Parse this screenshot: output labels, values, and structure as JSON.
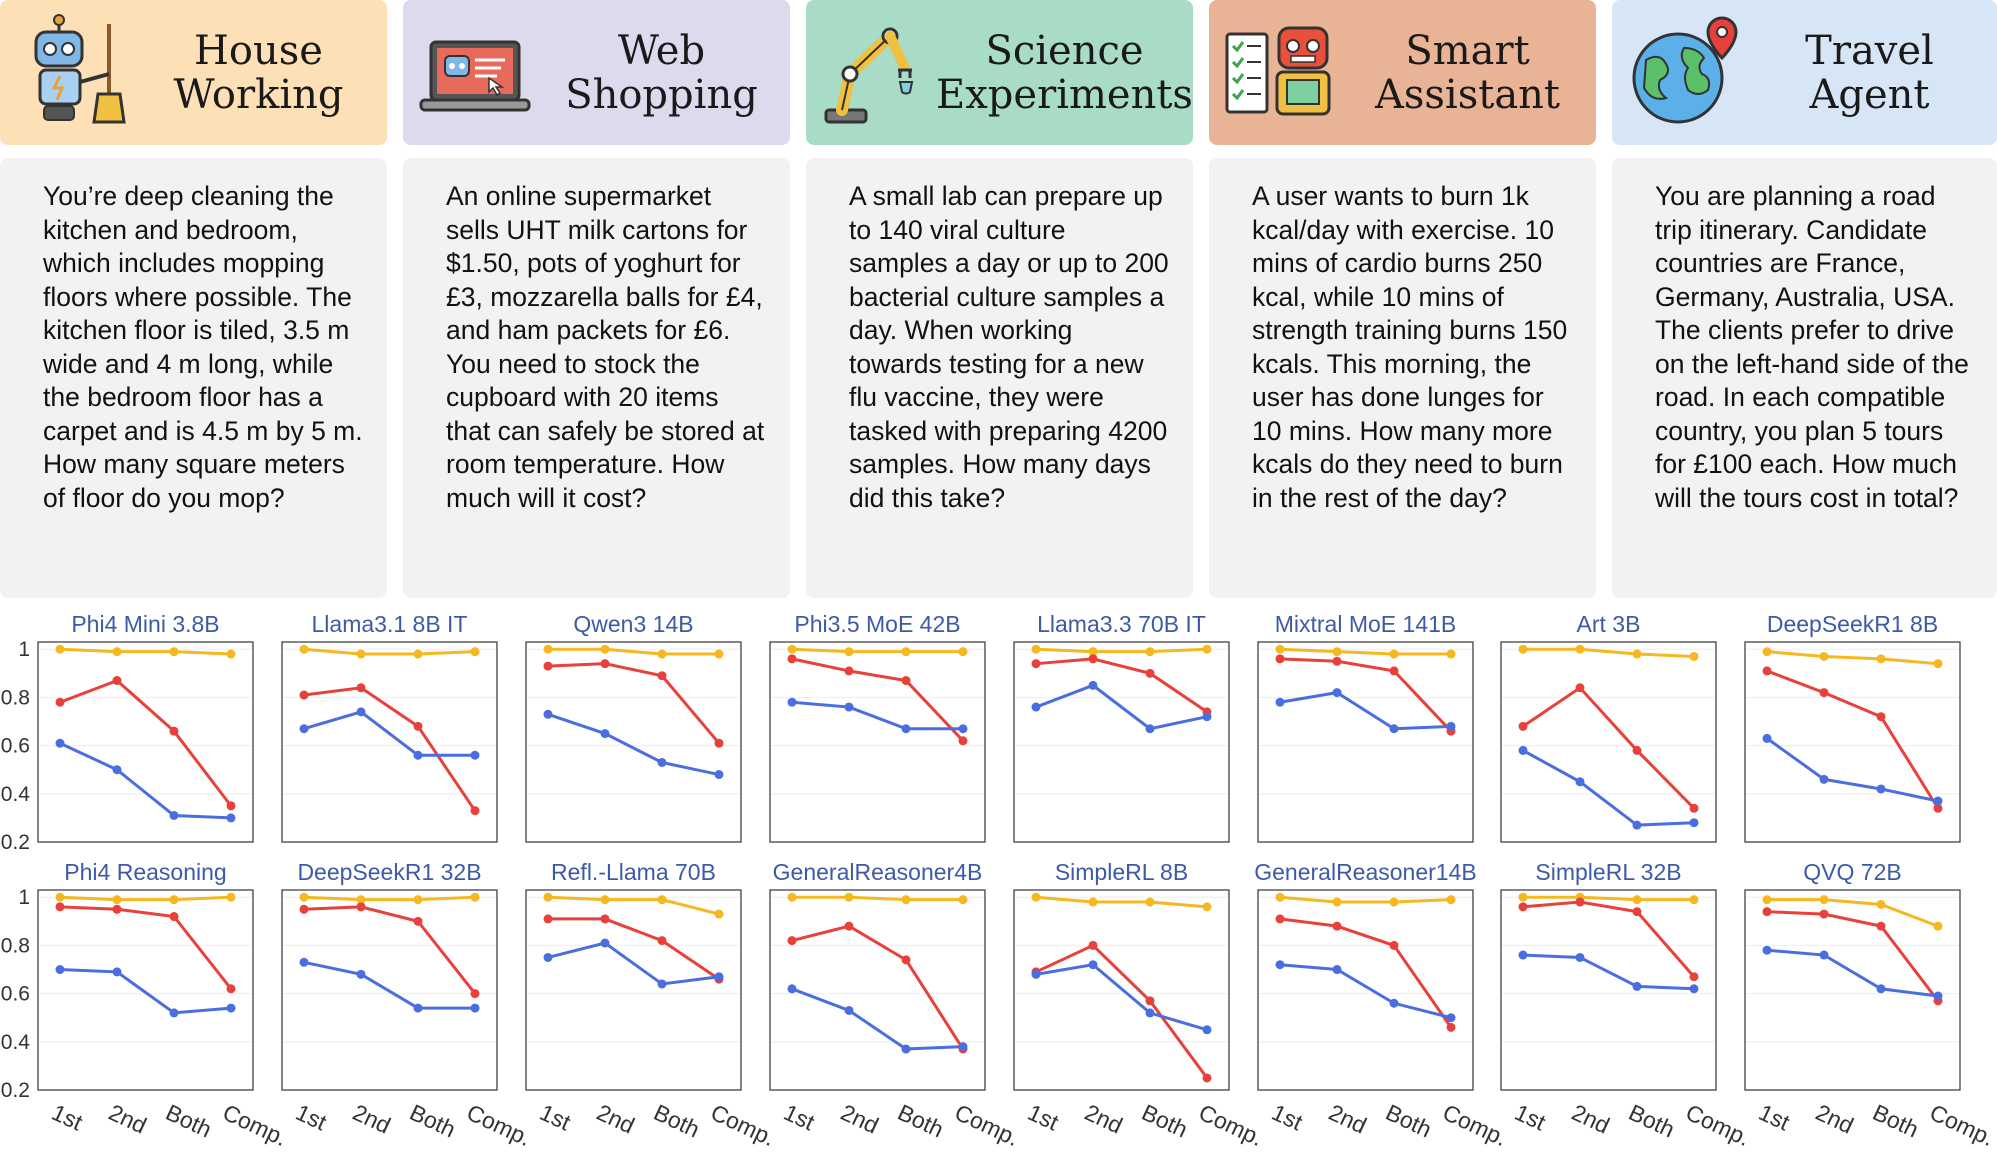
{
  "tasks": [
    {
      "title": "House\nWorking",
      "icon": "robot-with-broom-icon",
      "bg": "#fde0b5",
      "text": "You’re deep cleaning the kitchen and bedroom, which includes mopping floors where possible. The kitchen floor is tiled, 3.5 m wide and 4 m long, while the bedroom floor has a carpet and is 4.5 m by 5 m. How many square meters of floor do you mop?"
    },
    {
      "title": "Web\nShopping",
      "icon": "laptop-shopping-icon",
      "bg": "#dedaee",
      "text": "An online supermarket sells UHT milk cartons for $1.50, pots of yoghurt for £3, mozzarella balls for £4, and ham packets for £6. You need to stock the cupboard with 20 items that can safely be stored at room temperature. How much will it cost?"
    },
    {
      "title": "Science\nExperiments",
      "icon": "robotic-arm-icon",
      "bg": "#a9dcc7",
      "text": "A small lab can prepare up to 140 viral culture samples a day or up to 200 bacterial culture samples a day. When working towards testing for a new flu vaccine, they were tasked with preparing 4200 samples. How many days did this take?"
    },
    {
      "title": "Smart\nAssistant",
      "icon": "robot-checklist-icon",
      "bg": "#e9b396",
      "text": "A user wants to burn 1k kcal/day with exercise. 10 mins of cardio burns 250 kcal, while 10 mins of strength training burns 150 kcals. This morning, the user has done lunges for 10 mins. How many more kcals do they need to burn in the rest of the day?"
    },
    {
      "title": "Travel\nAgent",
      "icon": "globe-pin-icon",
      "bg": "#d6e6f7",
      "text": "You are planning a road trip itinerary. Candidate countries are France, Germany, Australia, USA. The clients prefer to drive on the left-hand side of the road. In each compatible country, you plan 5 tours for £100 each. How much will the tours cost in total?"
    }
  ],
  "chart_data": {
    "type": "line",
    "categories": [
      "1st",
      "2nd",
      "Both",
      "Comp."
    ],
    "ylim": [
      0.2,
      1.03
    ],
    "y_ticks": [
      "1",
      "0.8",
      "0.6",
      "0.4",
      "0.2"
    ],
    "series_colors": [
      "#f5b820",
      "#e8403a",
      "#4a6ee0"
    ],
    "panels": [
      {
        "title": "Phi4 Mini 3.8B",
        "series": [
          [
            1.0,
            0.99,
            0.99,
            0.98
          ],
          [
            0.78,
            0.87,
            0.66,
            0.35
          ],
          [
            0.61,
            0.5,
            0.31,
            0.3
          ]
        ]
      },
      {
        "title": "Llama3.1 8B IT",
        "series": [
          [
            1.0,
            0.98,
            0.98,
            0.99
          ],
          [
            0.81,
            0.84,
            0.68,
            0.33
          ],
          [
            0.67,
            0.74,
            0.56,
            0.56
          ]
        ]
      },
      {
        "title": "Qwen3 14B",
        "series": [
          [
            1.0,
            1.0,
            0.98,
            0.98
          ],
          [
            0.93,
            0.94,
            0.89,
            0.61
          ],
          [
            0.73,
            0.65,
            0.53,
            0.48
          ]
        ]
      },
      {
        "title": "Phi3.5 MoE 42B",
        "series": [
          [
            1.0,
            0.99,
            0.99,
            0.99
          ],
          [
            0.96,
            0.91,
            0.87,
            0.62
          ],
          [
            0.78,
            0.76,
            0.67,
            0.67
          ]
        ]
      },
      {
        "title": "Llama3.3 70B IT",
        "series": [
          [
            1.0,
            0.99,
            0.99,
            1.0
          ],
          [
            0.94,
            0.96,
            0.9,
            0.74
          ],
          [
            0.76,
            0.85,
            0.67,
            0.72
          ]
        ]
      },
      {
        "title": "Mixtral MoE 141B",
        "series": [
          [
            1.0,
            0.99,
            0.98,
            0.98
          ],
          [
            0.96,
            0.95,
            0.91,
            0.66
          ],
          [
            0.78,
            0.82,
            0.67,
            0.68
          ]
        ]
      },
      {
        "title": "Art 3B",
        "series": [
          [
            1.0,
            1.0,
            0.98,
            0.97
          ],
          [
            0.68,
            0.84,
            0.58,
            0.34
          ],
          [
            0.58,
            0.45,
            0.27,
            0.28
          ]
        ]
      },
      {
        "title": "DeepSeekR1 8B",
        "series": [
          [
            0.99,
            0.97,
            0.96,
            0.94
          ],
          [
            0.91,
            0.82,
            0.72,
            0.34
          ],
          [
            0.63,
            0.46,
            0.42,
            0.37
          ]
        ]
      },
      {
        "title": "Phi4 Reasoning",
        "series": [
          [
            1.0,
            0.99,
            0.99,
            1.0
          ],
          [
            0.96,
            0.95,
            0.92,
            0.62
          ],
          [
            0.7,
            0.69,
            0.52,
            0.54
          ]
        ]
      },
      {
        "title": "DeepSeekR1 32B",
        "series": [
          [
            1.0,
            0.99,
            0.99,
            1.0
          ],
          [
            0.95,
            0.96,
            0.9,
            0.6
          ],
          [
            0.73,
            0.68,
            0.54,
            0.54
          ]
        ]
      },
      {
        "title": "Refl.-Llama 70B",
        "series": [
          [
            1.0,
            0.99,
            0.99,
            0.93
          ],
          [
            0.91,
            0.91,
            0.82,
            0.66
          ],
          [
            0.75,
            0.81,
            0.64,
            0.67
          ]
        ]
      },
      {
        "title": "GeneralReasoner4B",
        "series": [
          [
            1.0,
            1.0,
            0.99,
            0.99
          ],
          [
            0.82,
            0.88,
            0.74,
            0.37
          ],
          [
            0.62,
            0.53,
            0.37,
            0.38
          ]
        ]
      },
      {
        "title": "SimpleRL 8B",
        "series": [
          [
            1.0,
            0.98,
            0.98,
            0.96
          ],
          [
            0.69,
            0.8,
            0.57,
            0.25
          ],
          [
            0.68,
            0.72,
            0.52,
            0.45
          ]
        ]
      },
      {
        "title": "GeneralReasoner14B",
        "series": [
          [
            1.0,
            0.98,
            0.98,
            0.99
          ],
          [
            0.91,
            0.88,
            0.8,
            0.46
          ],
          [
            0.72,
            0.7,
            0.56,
            0.5
          ]
        ]
      },
      {
        "title": "SimpleRL 32B",
        "series": [
          [
            1.0,
            1.0,
            0.99,
            0.99
          ],
          [
            0.96,
            0.98,
            0.94,
            0.67
          ],
          [
            0.76,
            0.75,
            0.63,
            0.62
          ]
        ]
      },
      {
        "title": "QVQ 72B",
        "series": [
          [
            0.99,
            0.99,
            0.97,
            0.88
          ],
          [
            0.94,
            0.93,
            0.88,
            0.57
          ],
          [
            0.78,
            0.76,
            0.62,
            0.59
          ]
        ]
      }
    ]
  }
}
